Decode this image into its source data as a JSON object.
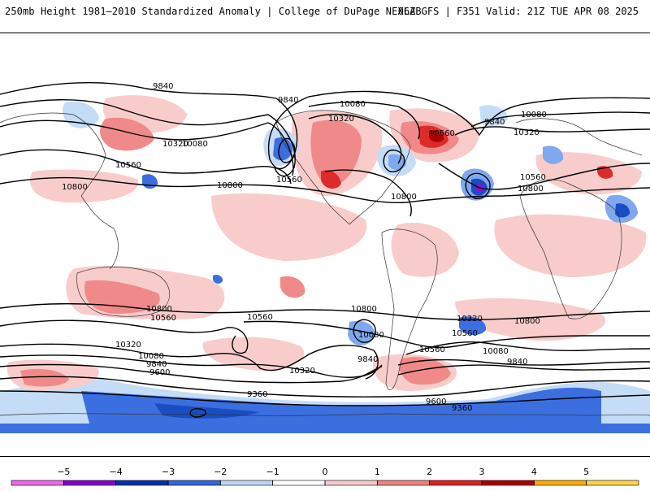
{
  "header": {
    "left_title": "250mb Height 1981–2010 Standardized Anomaly | College of DuPage NEXLAB",
    "right_title": "06Z GFS | F351 Valid: 21Z TUE APR 08 2025"
  },
  "contour_labels": {
    "n_9840_a": "9840",
    "n_9840_b": "9840",
    "n_9840_c": "9840",
    "n_10080_a": "10080",
    "n_10080_b": "10080",
    "n_10080_c": "10080",
    "n_10320_a": "10320",
    "n_10320_b": "10320",
    "n_10320_c": "10320",
    "n_10560_a": "10560",
    "n_10560_b": "10560",
    "n_10560_c": "10560",
    "n_10560_d": "10560",
    "n_10800_a": "10800",
    "n_10800_b": "10800",
    "n_10800_c": "10800",
    "n_10800_d": "10800",
    "s_10800_a": "10800",
    "s_10800_b": "10800",
    "s_10800_c": "10800",
    "s_10560_a": "10560",
    "s_10560_b": "10560",
    "s_10560_c": "10560",
    "s_10560_d": "10560",
    "s_10320_a": "10320",
    "s_10320_b": "10320",
    "s_10320_c": "10320",
    "s_10080_a": "10080",
    "s_10080_b": "10080",
    "s_10080_c": "10080",
    "s_9840_a": "9840",
    "s_9840_b": "9840",
    "s_9840_c": "9840",
    "s_9600_a": "9600",
    "s_9600_b": "9600",
    "s_9360_a": "9360",
    "s_9360_b": "9360"
  },
  "colorbar": {
    "ticks": [
      "−5",
      "−4",
      "−3",
      "−2",
      "−1",
      "0",
      "1",
      "2",
      "3",
      "4",
      "5"
    ],
    "colors": [
      "#ee66ee",
      "#8800cc",
      "#0033aa",
      "#3366dd",
      "#bbd6f5",
      "#ffffff",
      "#f8c8c8",
      "#f08080",
      "#dd2222",
      "#aa0000",
      "#ffaa00",
      "#ffd24a"
    ]
  },
  "colors": {
    "strong_neg": "#3b6fe0",
    "mid_neg": "#7fa8ee",
    "weak_neg": "#c4dcf6",
    "weak_pos": "#f9cccc",
    "mid_pos": "#f08a8a",
    "strong_pos": "#dd2a2a",
    "extreme_pos": "#a80000",
    "extreme_neg": "#8a12c4"
  }
}
